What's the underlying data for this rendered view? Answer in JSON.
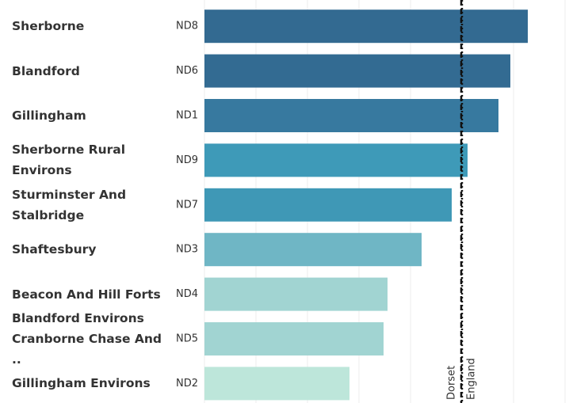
{
  "chart_data": {
    "type": "bar",
    "orientation": "horizontal",
    "categories": [
      "Sherborne",
      "Blandford",
      "Gillingham",
      "Sherborne Rural Environs",
      "Sturminster And Stalbridge",
      "Shaftesbury",
      "Beacon And Hill Forts",
      "Blandford Environs Cranborne Chase And ..",
      "Gillingham Environs"
    ],
    "codes": [
      "ND8",
      "ND6",
      "ND1",
      "ND9",
      "ND7",
      "ND3",
      "ND4",
      "ND5",
      "ND2"
    ],
    "values": [
      408,
      386,
      371,
      332,
      312,
      274,
      231,
      226,
      183
    ],
    "colors": [
      "#336a91",
      "#336b92",
      "#37799f",
      "#3e9ab8",
      "#3f98b6",
      "#6fb6c5",
      "#a1d4d2",
      "#a1d4d2",
      "#bde6da"
    ],
    "xlim": [
      0,
      460
    ],
    "xticks": [
      0,
      65,
      130,
      195,
      260,
      325,
      390,
      455
    ],
    "grid": true,
    "reference_lines": [
      {
        "name": "Dorset",
        "value": 324
      },
      {
        "name": "England",
        "value": 325
      }
    ]
  }
}
